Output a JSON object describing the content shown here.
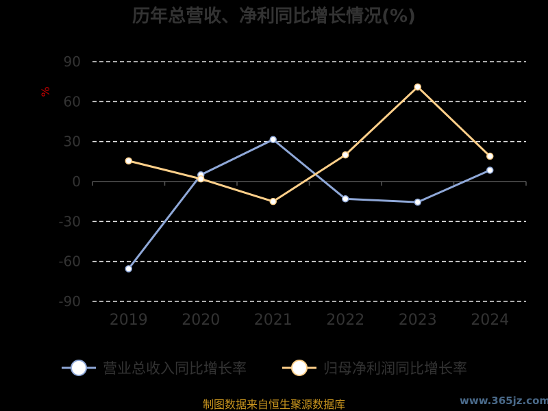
{
  "chart_data": {
    "type": "line",
    "title": "历年总营收、净利同比增长情况(%)",
    "ylabel": "%",
    "categories": [
      "2019",
      "2020",
      "2021",
      "2022",
      "2023",
      "2024"
    ],
    "yticks": [
      "90",
      "60",
      "30",
      "0",
      "-30",
      "-60",
      "-90"
    ],
    "ylim": [
      -90,
      90
    ],
    "grid": true,
    "legend_position": "bottom",
    "series": [
      {
        "name": "营业总收入同比增长率",
        "color": "#8fa8d8",
        "values": [
          -65.5,
          5.0,
          31.5,
          -13.0,
          -15.5,
          8.5
        ]
      },
      {
        "name": "归母净利润同比增长率",
        "color": "#ffd08a",
        "values": [
          15.5,
          2.0,
          -15.0,
          20.0,
          71.0,
          19.0
        ]
      }
    ]
  },
  "footer": {
    "source": "制图数据来自恒生聚源数据库",
    "watermark": "www.365jz.com"
  }
}
